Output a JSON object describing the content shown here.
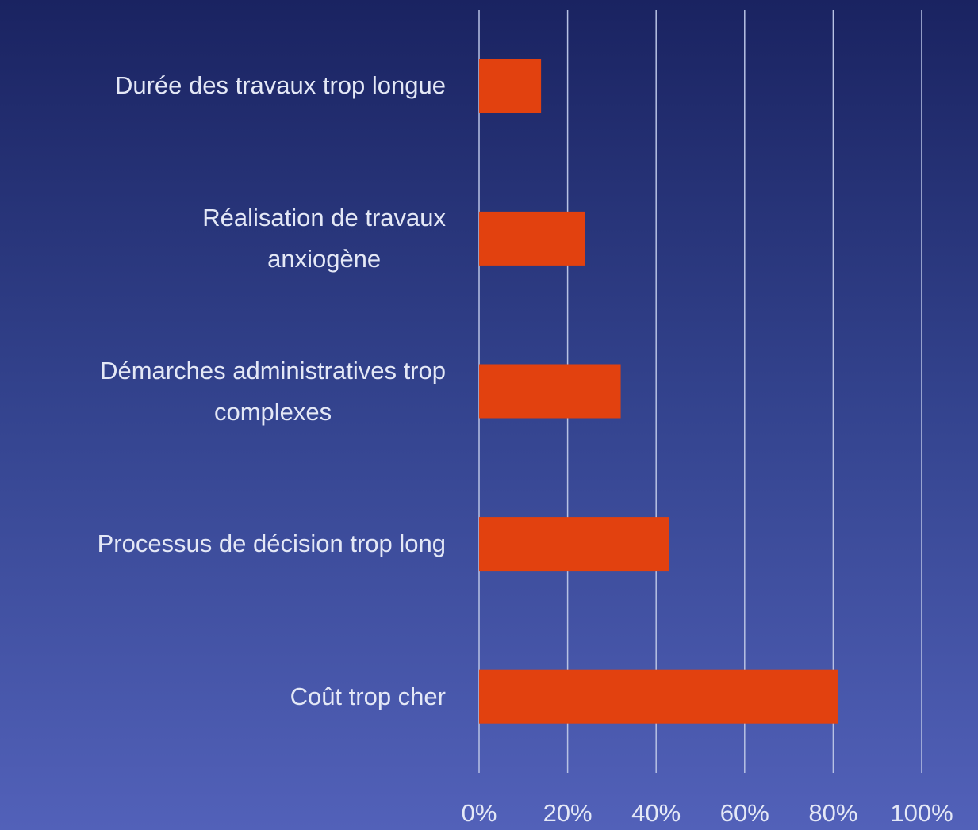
{
  "chart_data": {
    "type": "bar",
    "orientation": "horizontal",
    "categories": [
      "Durée des travaux trop longue",
      "Réalisation de travaux\nanxiogène",
      "Démarches administratives trop\ncomplexes",
      "Processus de décision trop long",
      "Coût trop cher"
    ],
    "values": [
      14,
      24,
      32,
      43,
      81
    ],
    "color": "#e2410f",
    "xlim": [
      0,
      100
    ],
    "xticks": [
      {
        "value": 0,
        "label": "0%"
      },
      {
        "value": 20,
        "label": "20%"
      },
      {
        "value": 40,
        "label": "40%"
      },
      {
        "value": 60,
        "label": "60%"
      },
      {
        "value": 80,
        "label": "80%"
      },
      {
        "value": 100,
        "label": "100%"
      }
    ],
    "grid": true
  }
}
